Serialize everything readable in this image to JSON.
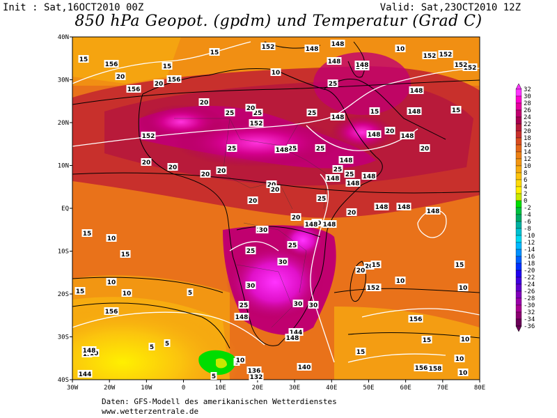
{
  "header": {
    "init": "Init : Sat,16OCT2010 00Z",
    "valid": "Valid: Sat,23OCT2010 12Z",
    "title": "850 hPa Geopot. (gpdm) und Temperatur (Grad C)"
  },
  "axes": {
    "lat_labels": [
      "40N",
      "30N",
      "20N",
      "10N",
      "EQ",
      "10S",
      "20S",
      "30S",
      "40S"
    ],
    "lon_labels": [
      "30W",
      "20W",
      "10W",
      "0",
      "10E",
      "20E",
      "30E",
      "40E",
      "50E",
      "60E",
      "70E",
      "80E"
    ]
  },
  "colorbar": {
    "levels": [
      "32",
      "30",
      "28",
      "26",
      "24",
      "22",
      "20",
      "18",
      "16",
      "14",
      "12",
      "10",
      "8",
      "6",
      "4",
      "2",
      "0",
      "-2",
      "-4",
      "-6",
      "-8",
      "-10",
      "-12",
      "-14",
      "-16",
      "-18",
      "-20",
      "-22",
      "-24",
      "-26",
      "-28",
      "-30",
      "-32",
      "-34",
      "-36"
    ],
    "colors": [
      "#ff33ff",
      "#ff00cc",
      "#e6009e",
      "#c0006f",
      "#a8004f",
      "#b81a3a",
      "#c8302c",
      "#d84c1e",
      "#e36618",
      "#ec8014",
      "#f29612",
      "#f7ac10",
      "#fbc30e",
      "#fdda0a",
      "#fff000",
      "#c8e800",
      "#00dd00",
      "#00c040",
      "#00aa66",
      "#00b0a0",
      "#00c0d0",
      "#00d8f0",
      "#00b8ff",
      "#0090ff",
      "#0060ff",
      "#0030ff",
      "#2000ee",
      "#4000dd",
      "#6000cc",
      "#8000bb",
      "#9a00a8",
      "#a80090",
      "#8a0070",
      "#6a0058"
    ]
  },
  "map_labels": {
    "temperature": [
      "15",
      "20",
      "15",
      "20",
      "20",
      "25",
      "25",
      "25",
      "25",
      "20",
      "25",
      "25",
      "20",
      "25",
      "20",
      "20",
      "15",
      "20",
      "25",
      "20",
      "25",
      "20",
      "25",
      "20",
      "20",
      "20",
      "15",
      "10",
      "10",
      "15",
      "15",
      "20",
      "10",
      "15",
      "20",
      "20",
      "15",
      "15",
      "10",
      "5",
      "5",
      "10",
      "10",
      "10",
      "10",
      "5",
      "5",
      "0",
      "15",
      "20",
      "15",
      "10",
      "10",
      "10",
      "15",
      "30",
      "30",
      "30",
      "25",
      "30",
      "25",
      "30",
      "25",
      "20",
      "10",
      "10",
      "15"
    ],
    "geopotential": [
      "156",
      "156",
      "156",
      "152",
      "152",
      "148",
      "148",
      "148",
      "148",
      "152",
      "148",
      "148",
      "148",
      "148",
      "148",
      "152",
      "152",
      "148",
      "148",
      "148",
      "148",
      "148",
      "148",
      "148",
      "148",
      "148",
      "148",
      "148",
      "152",
      "152",
      "156",
      "156",
      "148",
      "144",
      "140",
      "136",
      "132",
      "148",
      "144",
      "148",
      "156",
      "158",
      "152",
      "152"
    ]
  },
  "footer": {
    "line1": "Daten: GFS-Modell des amerikanischen Wetterdienstes",
    "line2": "www.wetterzentrale.de"
  }
}
